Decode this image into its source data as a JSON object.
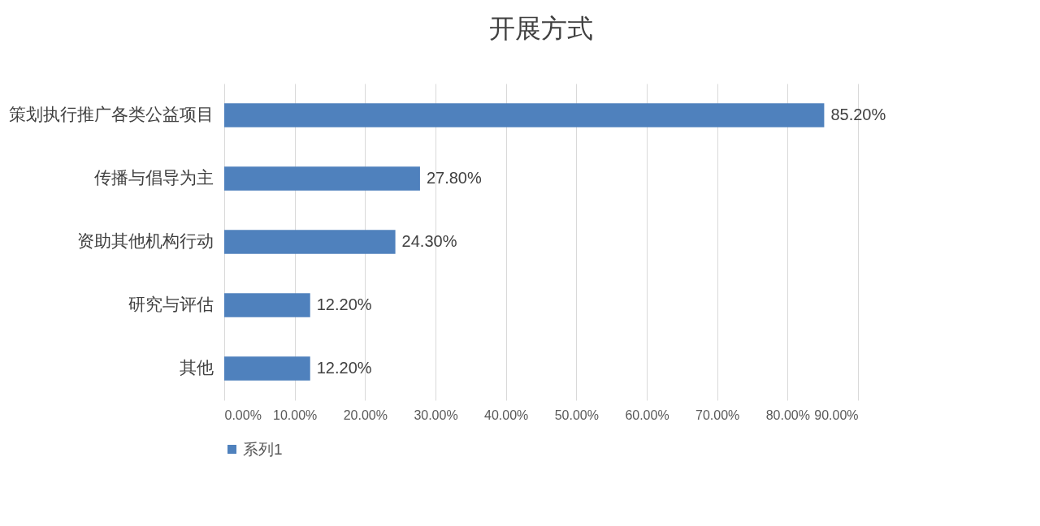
{
  "chart_data": {
    "type": "bar",
    "orientation": "horizontal",
    "title": "开展方式",
    "categories": [
      "策划执行推广各类公益项目",
      "传播与倡导为主",
      "资助其他机构行动",
      "研究与评估",
      "其他"
    ],
    "series": [
      {
        "name": "系列1",
        "color": "#4f81bd",
        "values": [
          85.2,
          27.8,
          24.3,
          12.2,
          12.2
        ],
        "value_labels": [
          "85.20%",
          "27.80%",
          "24.30%",
          "12.20%",
          "12.20%"
        ]
      }
    ],
    "xlim": [
      0,
      90
    ],
    "xticks": [
      {
        "value": 0,
        "label": "0.00%"
      },
      {
        "value": 10,
        "label": "10.00%"
      },
      {
        "value": 20,
        "label": "20.00%"
      },
      {
        "value": 30,
        "label": "30.00%"
      },
      {
        "value": 40,
        "label": "40.00%"
      },
      {
        "value": 50,
        "label": "50.00%"
      },
      {
        "value": 60,
        "label": "60.00%"
      },
      {
        "value": 70,
        "label": "70.00%"
      },
      {
        "value": 80,
        "label": "80.00%"
      },
      {
        "value": 90,
        "label": "90.00%"
      }
    ],
    "grid": "x",
    "legend": "bottom"
  }
}
